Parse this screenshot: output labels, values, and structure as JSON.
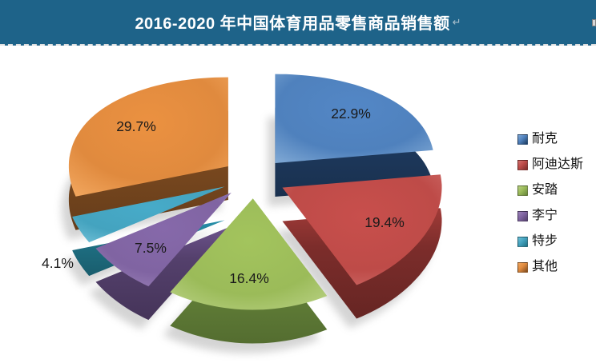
{
  "header": {
    "title": "2016-2020 年中国体育用品零售商品销售额",
    "paragraph_mark": "↵"
  },
  "chart_data": {
    "type": "pie",
    "style": "3d-exploded",
    "title": "2016-2020 年中国体育用品零售商品销售额",
    "unit": "%",
    "legend_position": "right",
    "slices": [
      {
        "label": "耐克",
        "value": 22.9,
        "display": "22.9%",
        "color": "#4F81BD",
        "light": "#7FA8D4",
        "dark": "#1E3A5F"
      },
      {
        "label": "阿迪达斯",
        "value": 19.4,
        "display": "19.4%",
        "color": "#BE4B48",
        "light": "#D0716E",
        "dark": "#7C2D2B"
      },
      {
        "label": "安踏",
        "value": 16.4,
        "display": "16.4%",
        "color": "#9BBB59",
        "light": "#B9D184",
        "dark": "#66853A"
      },
      {
        "label": "李宁",
        "value": 7.5,
        "display": "7.5%",
        "color": "#8064A2",
        "light": "#9C83B9",
        "dark": "#54406C"
      },
      {
        "label": "特步",
        "value": 4.1,
        "display": "4.1%",
        "color": "#44A3BF",
        "light": "#6FBFD6",
        "dark": "#1F7185"
      },
      {
        "label": "其他",
        "value": 29.7,
        "display": "29.7%",
        "color": "#E08A3E",
        "light": "#F2A75F",
        "dark": "#7C4A20"
      }
    ]
  },
  "colors": {
    "banner_bg": "#1E6389",
    "banner_text": "#FFFFFF",
    "label_text": "#1A1A1A",
    "background": "#FFFFFF"
  }
}
